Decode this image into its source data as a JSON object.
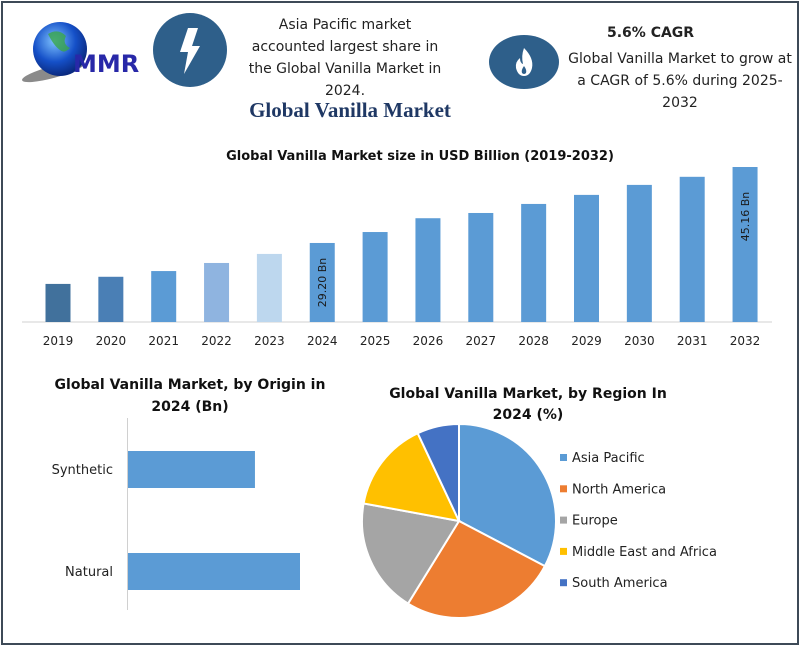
{
  "header": {
    "logo_text": "MMR",
    "info_left": {
      "icon": "lightning-icon",
      "text": "Asia Pacific market accounted largest share in the Global Vanilla Market in 2024."
    },
    "info_right": {
      "icon": "flame-icon",
      "heading": "5.6% CAGR",
      "text": "Global Vanilla Market to grow at a CAGR of 5.6% during 2025-2032"
    },
    "title": "Global Vanilla Market",
    "colors": {
      "icon_circle": "#2e5f8a",
      "title": "#1f3864"
    }
  },
  "chart_data": [
    {
      "type": "bar",
      "title": "Global Vanilla Market size in USD Billion (2019-2032)",
      "categories": [
        "2019",
        "2020",
        "2021",
        "2022",
        "2023",
        "2024",
        "2025",
        "2026",
        "2027",
        "2028",
        "2029",
        "2030",
        "2031",
        "2032"
      ],
      "values": [
        20.6,
        22.1,
        23.3,
        25.0,
        26.9,
        29.2,
        31.5,
        34.4,
        35.5,
        37.4,
        39.3,
        41.4,
        43.1,
        45.16
      ],
      "data_labels": {
        "2024": "29.20 Bn",
        "2032": "45.16 Bn"
      },
      "colors": [
        "#41719c",
        "#4a7fb5",
        "#5b9bd5",
        "#8fb4e0",
        "#bdd7ee",
        "#5b9bd5",
        "#5b9bd5",
        "#5b9bd5",
        "#5b9bd5",
        "#5b9bd5",
        "#5b9bd5",
        "#5b9bd5",
        "#5b9bd5",
        "#5b9bd5"
      ],
      "ylim": [
        12.6,
        46
      ],
      "grid": false
    },
    {
      "type": "bar",
      "orientation": "horizontal",
      "title": "Global Vanilla Market, by Origin in 2024 (Bn)",
      "categories": [
        "Synthetic",
        "Natural"
      ],
      "values": [
        12.4,
        16.8
      ],
      "color": "#5b9bd5",
      "xlim": [
        0,
        20
      ]
    },
    {
      "type": "pie",
      "title": "Global Vanilla Market, by Region In 2024 (%)",
      "categories": [
        "Asia Pacific",
        "North America",
        "Europe",
        "Middle East and Africa",
        "South America"
      ],
      "values": [
        32.7,
        26.1,
        19.1,
        15.1,
        7.0
      ],
      "colors": [
        "#5b9bd5",
        "#ed7d31",
        "#a5a5a5",
        "#ffc000",
        "#4472c4"
      ],
      "legend": "right"
    }
  ]
}
